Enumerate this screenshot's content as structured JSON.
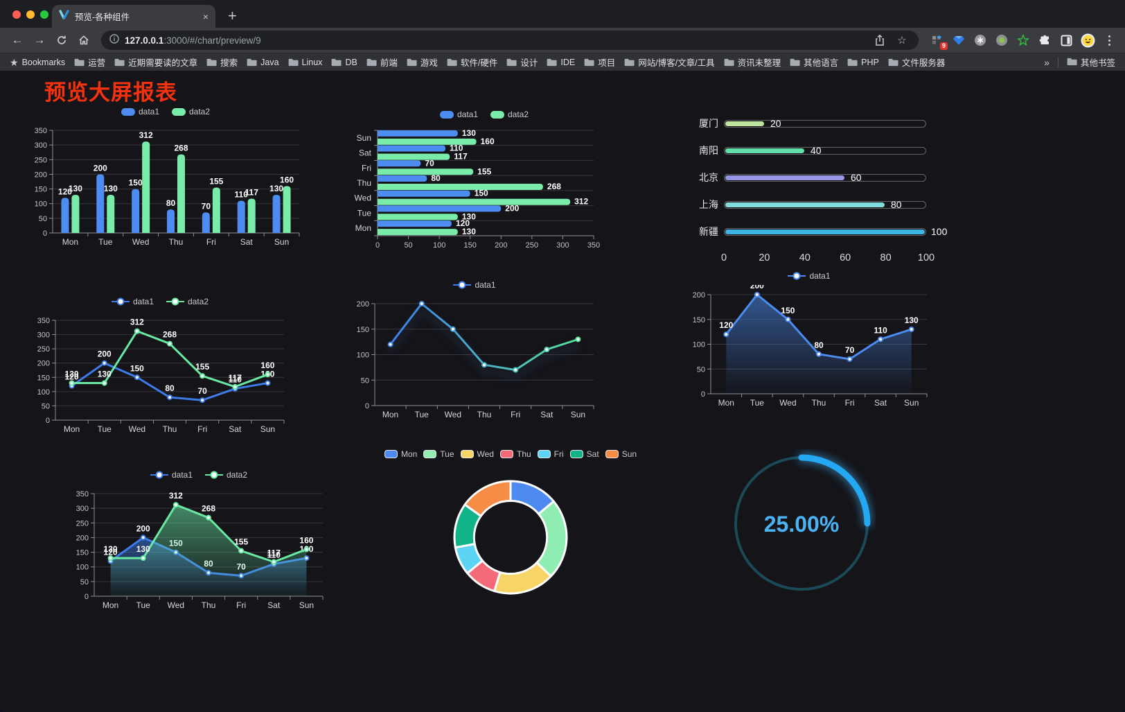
{
  "browser": {
    "tab": {
      "title": "预览-各种组件",
      "close_glyph": "×",
      "new_tab_glyph": "+"
    },
    "nav": {
      "back_glyph": "←",
      "forward_glyph": "→"
    },
    "url": {
      "host": "127.0.0.1",
      "rest": ":3000/#/chart/preview/9"
    },
    "actions": {
      "star_glyph": "☆",
      "extension_badge": "9"
    },
    "bookmarks": {
      "label": "Bookmarks",
      "star_glyph": "★",
      "items": [
        "运营",
        "近期需要读的文章",
        "搜索",
        "Java",
        "Linux",
        "DB",
        "前端",
        "游戏",
        "软件/硬件",
        "设计",
        "IDE",
        "项目",
        "网站/博客/文章/工具",
        "资讯未整理",
        "其他语言",
        "PHP",
        "文件服务器"
      ],
      "overflow_glyph": "»",
      "other_label": "其他书签"
    },
    "traffic_lights": {
      "close": "#FE5F57",
      "minimize": "#FEBC2E",
      "zoom": "#28C840"
    }
  },
  "page": {
    "title": "预览大屏报表"
  },
  "chart_data": [
    {
      "type": "grouped-bar",
      "categories": [
        "Mon",
        "Tue",
        "Wed",
        "Thu",
        "Fri",
        "Sat",
        "Sun"
      ],
      "series": [
        {
          "name": "data1",
          "color": "#4D8DF2",
          "values": [
            120,
            200,
            150,
            80,
            70,
            110,
            130
          ]
        },
        {
          "name": "data2",
          "color": "#79ECA9",
          "values": [
            130,
            130,
            312,
            268,
            155,
            117,
            160
          ]
        }
      ],
      "ylim": [
        0,
        350
      ],
      "ytick": 50,
      "labels": true,
      "legend_position": "top",
      "grid": true
    },
    {
      "type": "h-bar",
      "categories": [
        "Mon",
        "Tue",
        "Wed",
        "Thu",
        "Fri",
        "Sat",
        "Sun"
      ],
      "series": [
        {
          "name": "data1",
          "color": "#4D8DF2",
          "values": [
            120,
            200,
            150,
            80,
            70,
            110,
            130
          ]
        },
        {
          "name": "data2",
          "color": "#79ECA9",
          "values": [
            130,
            130,
            312,
            268,
            155,
            117,
            160
          ]
        }
      ],
      "xlim": [
        0,
        350
      ],
      "xtick": 50,
      "labels": true,
      "legend_position": "top",
      "grid": true
    },
    {
      "type": "progress",
      "items": [
        {
          "label": "厦门",
          "value": 20,
          "color": "#C0E49E"
        },
        {
          "label": "南阳",
          "value": 40,
          "color": "#60E0A8"
        },
        {
          "label": "北京",
          "value": 60,
          "color": "#9795E5"
        },
        {
          "label": "上海",
          "value": 80,
          "color": "#7FDEDC"
        },
        {
          "label": "新疆",
          "value": 100,
          "color": "#3DB4E2"
        }
      ],
      "max": 100,
      "xticks": [
        0,
        20,
        40,
        60,
        80,
        100
      ]
    },
    {
      "type": "line",
      "categories": [
        "Mon",
        "Tue",
        "Wed",
        "Thu",
        "Fri",
        "Sat",
        "Sun"
      ],
      "series": [
        {
          "name": "data1",
          "color": "#3D7CE8",
          "values": [
            120,
            200,
            150,
            80,
            70,
            110,
            130
          ]
        },
        {
          "name": "data2",
          "color": "#69E9A3",
          "values": [
            130,
            130,
            312,
            268,
            155,
            117,
            160
          ]
        }
      ],
      "ylim": [
        0,
        350
      ],
      "ytick": 50,
      "labels": true,
      "legend_position": "top",
      "grid": true
    },
    {
      "type": "line",
      "categories": [
        "Mon",
        "Tue",
        "Wed",
        "Thu",
        "Fri",
        "Sat",
        "Sun"
      ],
      "series": [
        {
          "name": "data1",
          "gradient": [
            "#3F7EEA",
            "#55E09A"
          ],
          "values": [
            120,
            200,
            150,
            80,
            70,
            110,
            130
          ]
        }
      ],
      "ylim": [
        0,
        200
      ],
      "ytick": 50,
      "labels": false,
      "glow": true,
      "legend_position": "top",
      "grid": true
    },
    {
      "type": "line",
      "categories": [
        "Mon",
        "Tue",
        "Wed",
        "Thu",
        "Fri",
        "Sat",
        "Sun"
      ],
      "series": [
        {
          "name": "data1",
          "color": "#4C8CF0",
          "area": true,
          "values": [
            120,
            200,
            150,
            80,
            70,
            110,
            130
          ]
        }
      ],
      "ylim": [
        0,
        200
      ],
      "ytick": 50,
      "labels": true,
      "legend_position": "top",
      "grid": true
    },
    {
      "type": "line",
      "categories": [
        "Mon",
        "Tue",
        "Wed",
        "Thu",
        "Fri",
        "Sat",
        "Sun"
      ],
      "series": [
        {
          "name": "data1",
          "color": "#3D7CE8",
          "area": true,
          "values": [
            120,
            200,
            150,
            80,
            70,
            110,
            130
          ]
        },
        {
          "name": "data2",
          "color": "#69E9A3",
          "area": true,
          "values": [
            130,
            130,
            312,
            268,
            155,
            117,
            160
          ]
        }
      ],
      "ylim": [
        0,
        350
      ],
      "ytick": 50,
      "labels": true,
      "legend_position": "top",
      "grid": true
    },
    {
      "type": "donut",
      "items": [
        {
          "label": "Mon",
          "value": 120,
          "color": "#4E8BF0"
        },
        {
          "label": "Tue",
          "value": 200,
          "color": "#8FEDB2"
        },
        {
          "label": "Wed",
          "value": 150,
          "color": "#F6D465"
        },
        {
          "label": "Thu",
          "value": 80,
          "color": "#F56A79"
        },
        {
          "label": "Fri",
          "value": 70,
          "color": "#5ED4F5"
        },
        {
          "label": "Sat",
          "value": 110,
          "color": "#11B488"
        },
        {
          "label": "Sun",
          "value": 130,
          "color": "#F68C45"
        }
      ],
      "inner_ratio": 0.65,
      "legend_position": "top"
    },
    {
      "type": "gauge",
      "value": 25,
      "label": "25.00%",
      "arc_color": "#25A8F2",
      "track_color": "#1B4A57",
      "text_color": "#4AB3F4"
    }
  ]
}
